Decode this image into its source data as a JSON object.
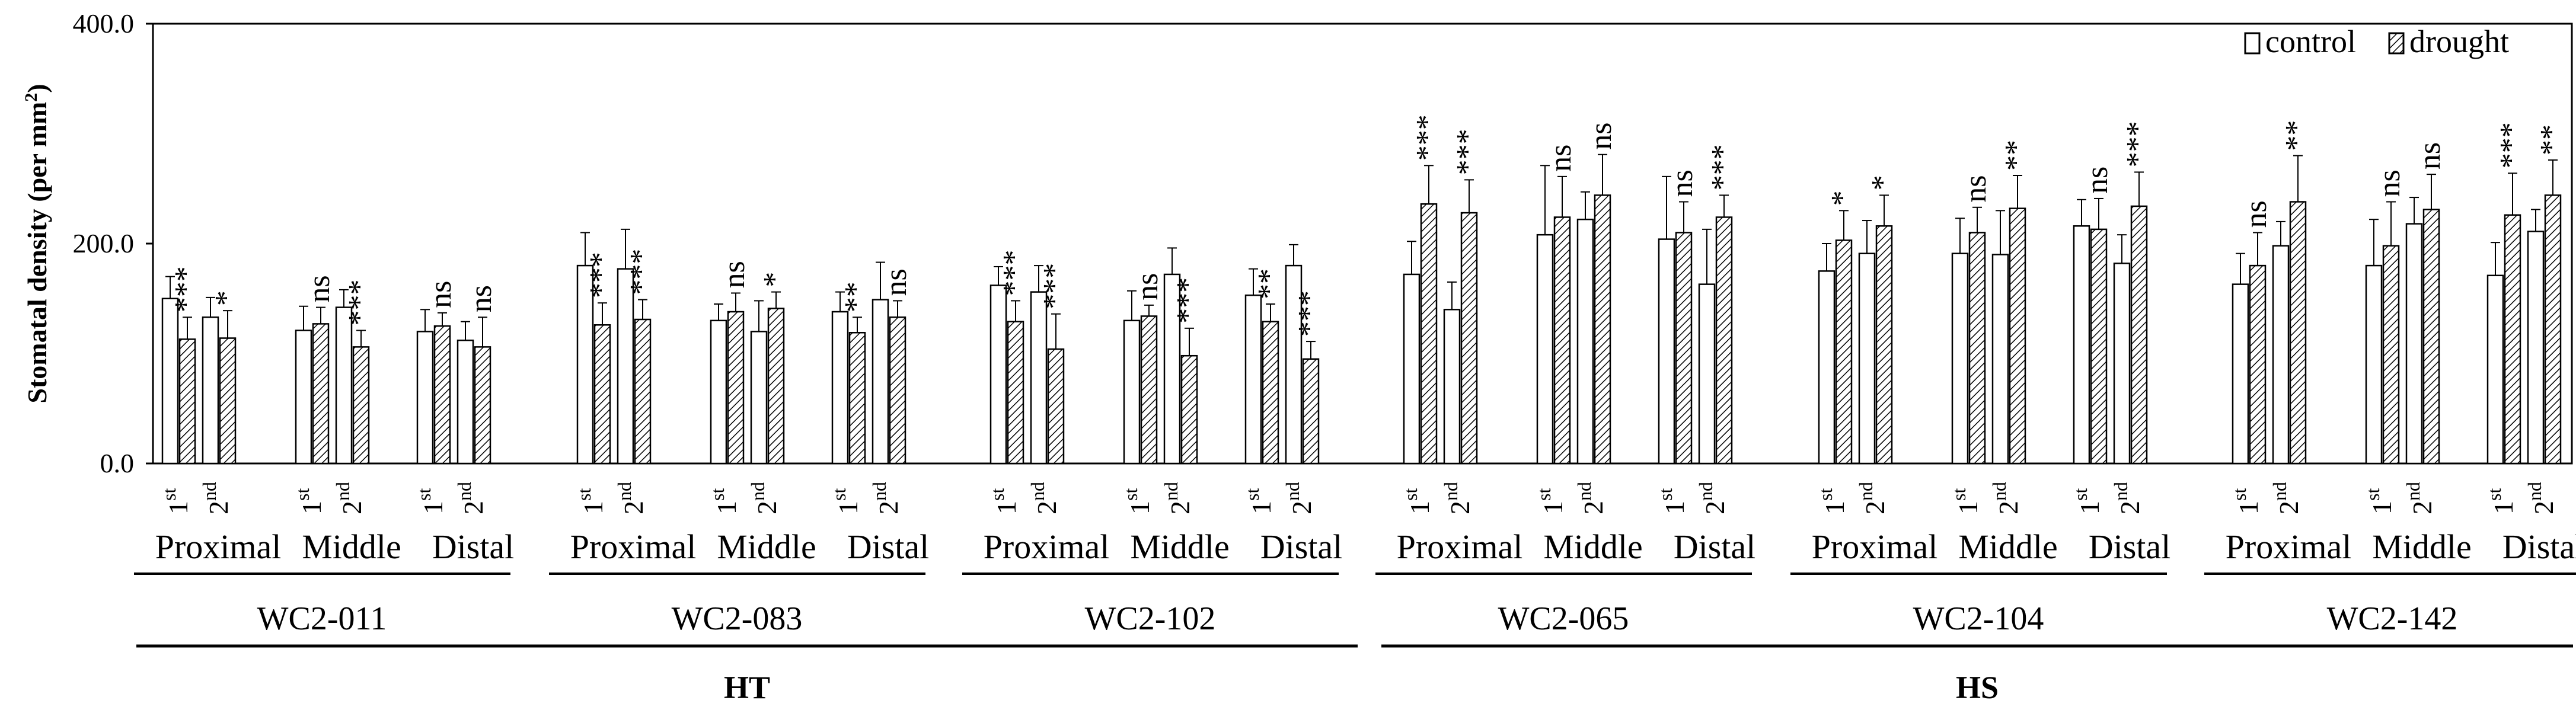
{
  "chart_data": {
    "type": "bar",
    "ylabel": "Stomatal density (per mm",
    "ylabel_sup": "2",
    "ylabel_end": ")",
    "ylim": [
      0,
      400
    ],
    "yticks": [
      "0.0",
      "200.0",
      "400.0"
    ],
    "legend": {
      "control": "control",
      "drought": "drought"
    },
    "position_labels": [
      "Proximal",
      "Middle",
      "Distal"
    ],
    "ordinal_labels": [
      {
        "base": "1",
        "sup": "st"
      },
      {
        "base": "2",
        "sup": "nd"
      }
    ],
    "treatments": [
      {
        "name": "HT",
        "genotypes": [
          "WC2-011",
          "WC2-083",
          "WC2-102"
        ]
      },
      {
        "name": "HS",
        "genotypes": [
          "WC2-065",
          "WC2-104",
          "WC2-142"
        ]
      }
    ],
    "genotypes": [
      {
        "name": "WC2-011",
        "positions": [
          {
            "name": "Proximal",
            "leaves": [
              {
                "control": 150,
                "control_err": 20,
                "drought": 113,
                "drought_err": 20,
                "sig": "***"
              },
              {
                "control": 133,
                "control_err": 18,
                "drought": 114,
                "drought_err": 25,
                "sig": "*"
              }
            ]
          },
          {
            "name": "Middle",
            "leaves": [
              {
                "control": 121,
                "control_err": 22,
                "drought": 127,
                "drought_err": 15,
                "sig": "ns"
              },
              {
                "control": 142,
                "control_err": 16,
                "drought": 106,
                "drought_err": 15,
                "sig": "***"
              }
            ]
          },
          {
            "name": "Distal",
            "leaves": [
              {
                "control": 120,
                "control_err": 20,
                "drought": 125,
                "drought_err": 12,
                "sig": "ns"
              },
              {
                "control": 112,
                "control_err": 17,
                "drought": 106,
                "drought_err": 27,
                "sig": "ns"
              }
            ]
          }
        ]
      },
      {
        "name": "WC2-083",
        "positions": [
          {
            "name": "Proximal",
            "leaves": [
              {
                "control": 180,
                "control_err": 30,
                "drought": 126,
                "drought_err": 20,
                "sig": "***"
              },
              {
                "control": 177,
                "control_err": 36,
                "drought": 131,
                "drought_err": 18,
                "sig": "***"
              }
            ]
          },
          {
            "name": "Middle",
            "leaves": [
              {
                "control": 130,
                "control_err": 15,
                "drought": 138,
                "drought_err": 17,
                "sig": "ns"
              },
              {
                "control": 120,
                "control_err": 28,
                "drought": 141,
                "drought_err": 15,
                "sig": "*"
              }
            ]
          },
          {
            "name": "Distal",
            "leaves": [
              {
                "control": 138,
                "control_err": 18,
                "drought": 119,
                "drought_err": 14,
                "sig": "**"
              },
              {
                "control": 149,
                "control_err": 34,
                "drought": 133,
                "drought_err": 15,
                "sig": "ns"
              }
            ]
          }
        ]
      },
      {
        "name": "WC2-102",
        "positions": [
          {
            "name": "Proximal",
            "leaves": [
              {
                "control": 162,
                "control_err": 17,
                "drought": 129,
                "drought_err": 19,
                "sig": "***"
              },
              {
                "control": 156,
                "control_err": 24,
                "drought": 104,
                "drought_err": 32,
                "sig": "***"
              }
            ]
          },
          {
            "name": "Middle",
            "leaves": [
              {
                "control": 130,
                "control_err": 27,
                "drought": 134,
                "drought_err": 10,
                "sig": "ns"
              },
              {
                "control": 172,
                "control_err": 24,
                "drought": 98,
                "drought_err": 25,
                "sig": "***"
              }
            ]
          },
          {
            "name": "Distal",
            "leaves": [
              {
                "control": 153,
                "control_err": 24,
                "drought": 129,
                "drought_err": 16,
                "sig": "**"
              },
              {
                "control": 180,
                "control_err": 19,
                "drought": 95,
                "drought_err": 16,
                "sig": "***"
              }
            ]
          }
        ]
      },
      {
        "name": "WC2-065",
        "positions": [
          {
            "name": "Proximal",
            "leaves": [
              {
                "control": 172,
                "control_err": 30,
                "drought": 236,
                "drought_err": 35,
                "sig": "***"
              },
              {
                "control": 140,
                "control_err": 25,
                "drought": 228,
                "drought_err": 30,
                "sig": "***"
              }
            ]
          },
          {
            "name": "Middle",
            "leaves": [
              {
                "control": 208,
                "control_err": 63,
                "drought": 224,
                "drought_err": 37,
                "sig": "ns"
              },
              {
                "control": 222,
                "control_err": 25,
                "drought": 244,
                "drought_err": 37,
                "sig": "ns"
              }
            ]
          },
          {
            "name": "Distal",
            "leaves": [
              {
                "control": 204,
                "control_err": 57,
                "drought": 210,
                "drought_err": 28,
                "sig": "ns"
              },
              {
                "control": 163,
                "control_err": 50,
                "drought": 224,
                "drought_err": 20,
                "sig": "***"
              }
            ]
          }
        ]
      },
      {
        "name": "WC2-104",
        "positions": [
          {
            "name": "Proximal",
            "leaves": [
              {
                "control": 175,
                "control_err": 25,
                "drought": 203,
                "drought_err": 27,
                "sig": "*"
              },
              {
                "control": 191,
                "control_err": 30,
                "drought": 216,
                "drought_err": 28,
                "sig": "*"
              }
            ]
          },
          {
            "name": "Middle",
            "leaves": [
              {
                "control": 191,
                "control_err": 32,
                "drought": 210,
                "drought_err": 23,
                "sig": "ns"
              },
              {
                "control": 190,
                "control_err": 40,
                "drought": 232,
                "drought_err": 30,
                "sig": "**"
              }
            ]
          },
          {
            "name": "Distal",
            "leaves": [
              {
                "control": 216,
                "control_err": 24,
                "drought": 213,
                "drought_err": 28,
                "sig": "ns"
              },
              {
                "control": 182,
                "control_err": 26,
                "drought": 234,
                "drought_err": 31,
                "sig": "***"
              }
            ]
          }
        ]
      },
      {
        "name": "WC2-142",
        "positions": [
          {
            "name": "Proximal",
            "leaves": [
              {
                "control": 163,
                "control_err": 28,
                "drought": 180,
                "drought_err": 30,
                "sig": "ns"
              },
              {
                "control": 198,
                "control_err": 22,
                "drought": 238,
                "drought_err": 42,
                "sig": "**"
              }
            ]
          },
          {
            "name": "Middle",
            "leaves": [
              {
                "control": 180,
                "control_err": 42,
                "drought": 198,
                "drought_err": 40,
                "sig": "ns"
              },
              {
                "control": 218,
                "control_err": 24,
                "drought": 231,
                "drought_err": 32,
                "sig": "ns"
              }
            ]
          },
          {
            "name": "Distal",
            "leaves": [
              {
                "control": 171,
                "control_err": 30,
                "drought": 226,
                "drought_err": 38,
                "sig": "***"
              },
              {
                "control": 211,
                "control_err": 20,
                "drought": 244,
                "drought_err": 32,
                "sig": "**"
              }
            ]
          }
        ]
      }
    ]
  }
}
